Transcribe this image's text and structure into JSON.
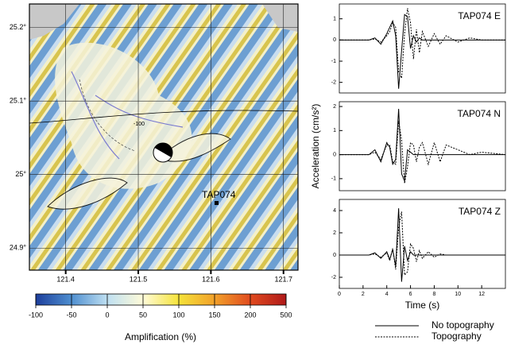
{
  "chart_data": [
    {
      "type": "map",
      "xlim": [
        121.35,
        121.72
      ],
      "ylim": [
        24.87,
        25.232
      ],
      "xticks": [
        121.4,
        121.5,
        121.6,
        121.7
      ],
      "yticks": [
        {
          "value": 24.9,
          "label": "24.9°"
        },
        {
          "value": 25,
          "label": "25°"
        },
        {
          "value": 25.1,
          "label": "25.1°"
        },
        {
          "value": 25.2,
          "label": "25.2°"
        }
      ],
      "station": "TAP074",
      "annotations": [
        "-100"
      ],
      "colorbar": {
        "label": "Amplification (%)",
        "ticks": [
          -100,
          -50,
          0,
          50,
          100,
          150,
          200,
          500
        ],
        "colors": [
          "#1d3f9c",
          "#4f8fd0",
          "#bfe0f2",
          "#fffbd8",
          "#f5e33a",
          "#f2a12a",
          "#e14b1f",
          "#b01a1a"
        ]
      }
    },
    {
      "type": "line",
      "title": "TAP074 E",
      "x": [
        0,
        2,
        2.5,
        3,
        3.5,
        4,
        4.25,
        4.5,
        4.75,
        5,
        5.25,
        5.5,
        5.75,
        6,
        6.25,
        6.5,
        6.75,
        7,
        7.5,
        8,
        8.5,
        9,
        10,
        11,
        12,
        14
      ],
      "xlim": [
        0,
        14
      ],
      "ylim": [
        -2.5,
        1.7
      ],
      "yticks": [
        -2,
        -1,
        0,
        1
      ],
      "series": [
        {
          "name": "No topography",
          "color": "#000000",
          "style": "solid",
          "values": [
            0,
            0,
            0,
            0.1,
            -0.2,
            0.3,
            0.6,
            0.9,
            0.2,
            -2.3,
            -0.5,
            1.2,
            1.1,
            -0.4,
            0.2,
            -0.1,
            0.1,
            0,
            0,
            0,
            0,
            0,
            0,
            0,
            0,
            0
          ]
        },
        {
          "name": "Topography",
          "color": "#000000",
          "style": "dashed",
          "values": [
            0,
            0,
            0,
            0.05,
            -0.1,
            0.2,
            0.4,
            0.8,
            0.6,
            -1.5,
            -1.8,
            0.3,
            1.5,
            0.8,
            -0.9,
            0.5,
            -0.6,
            0.4,
            -0.3,
            0.3,
            -0.2,
            0.2,
            -0.1,
            0.1,
            0,
            0
          ]
        }
      ]
    },
    {
      "type": "line",
      "title": "TAP074 N",
      "ylabel": "Acceleration (cm/s²)",
      "x": [
        0,
        2,
        2.5,
        3,
        3.5,
        4,
        4.25,
        4.5,
        4.75,
        5,
        5.25,
        5.5,
        5.75,
        6,
        6.25,
        6.5,
        6.75,
        7,
        7.5,
        8,
        8.5,
        9,
        10,
        11,
        12,
        14
      ],
      "xlim": [
        0,
        14
      ],
      "ylim": [
        -1.5,
        2.2
      ],
      "yticks": [
        -1,
        0,
        1,
        2
      ],
      "series": [
        {
          "name": "No topography",
          "color": "#000000",
          "style": "solid",
          "values": [
            0,
            0,
            0,
            0.2,
            -0.3,
            0.5,
            0.3,
            -0.4,
            -0.2,
            1.9,
            -0.8,
            -1.1,
            0.2,
            0.1,
            0,
            0,
            0,
            0,
            0,
            0,
            0,
            0,
            0,
            0,
            0,
            0
          ]
        },
        {
          "name": "Topography",
          "color": "#000000",
          "style": "dashed",
          "values": [
            0,
            0,
            0,
            0.1,
            -0.2,
            0.4,
            0.4,
            -0.3,
            -0.4,
            1.4,
            0.6,
            -1.2,
            -0.5,
            0.5,
            0.4,
            -0.3,
            0.3,
            0.5,
            -0.4,
            0.5,
            -0.3,
            0.4,
            0.2,
            0,
            0.1,
            0
          ]
        }
      ]
    },
    {
      "type": "line",
      "title": "TAP074 Z",
      "xlabel": "Time (s)",
      "legend": "bottom-right",
      "x": [
        0,
        2,
        2.5,
        3,
        3.5,
        4,
        4.25,
        4.5,
        4.75,
        5,
        5.25,
        5.5,
        5.75,
        6,
        6.25,
        6.5,
        6.75,
        7,
        7.5,
        8,
        8.5,
        9,
        10,
        11,
        12,
        14
      ],
      "xlim": [
        0,
        14
      ],
      "xticks": [
        0,
        2,
        4,
        6,
        8,
        10,
        12
      ],
      "ylim": [
        -3,
        5
      ],
      "yticks": [
        -2,
        0,
        2,
        4
      ],
      "series": [
        {
          "name": "No topography",
          "color": "#000000",
          "style": "solid",
          "values": [
            0,
            0,
            0,
            0.2,
            -0.3,
            0.3,
            -0.4,
            0.5,
            -1,
            4.2,
            -2.4,
            0.8,
            -0.5,
            0.3,
            0,
            0,
            0,
            0,
            0,
            0,
            0,
            0,
            0,
            0,
            0,
            0
          ]
        },
        {
          "name": "Topography",
          "color": "#000000",
          "style": "dashed",
          "values": [
            0,
            0,
            0,
            0.1,
            -0.2,
            0.2,
            -0.5,
            0.6,
            -1.3,
            2.5,
            3.9,
            -1.8,
            -1.5,
            1,
            0.6,
            -0.6,
            0.4,
            -0.3,
            0.3,
            -0.2,
            0.1,
            0,
            0,
            0,
            0,
            0
          ]
        }
      ]
    }
  ]
}
